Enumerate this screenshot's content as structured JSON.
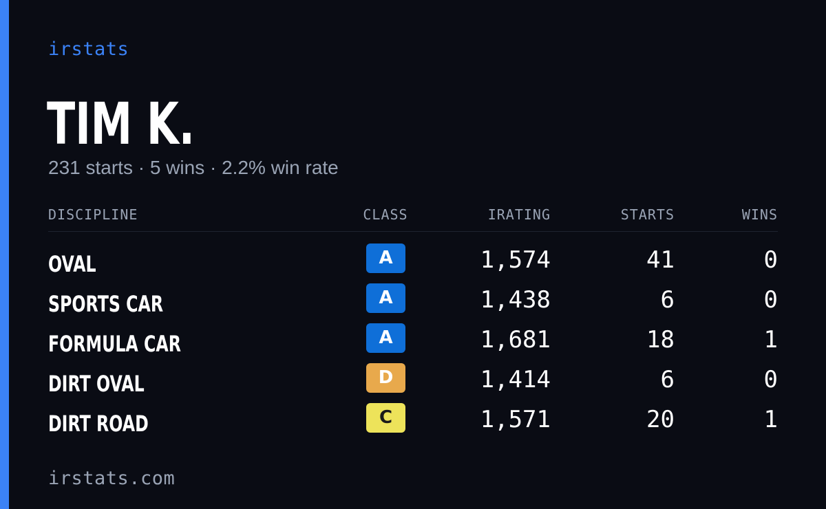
{
  "brand": "irstats",
  "driver": {
    "name": "TIM K.",
    "summary": {
      "starts": "231 starts",
      "wins": "5 wins",
      "win_rate": "2.2% win rate",
      "separator": "·"
    }
  },
  "table": {
    "headers": {
      "discipline": "DISCIPLINE",
      "class": "CLASS",
      "irating": "IRATING",
      "starts": "STARTS",
      "wins": "WINS"
    },
    "rows": [
      {
        "discipline": "OVAL",
        "class": "A",
        "class_color": "#0f6fd8",
        "class_text_color": "#ffffff",
        "irating": "1,574",
        "starts": "41",
        "wins": "0"
      },
      {
        "discipline": "SPORTS CAR",
        "class": "A",
        "class_color": "#0f6fd8",
        "class_text_color": "#ffffff",
        "irating": "1,438",
        "starts": "6",
        "wins": "0"
      },
      {
        "discipline": "FORMULA CAR",
        "class": "A",
        "class_color": "#0f6fd8",
        "class_text_color": "#ffffff",
        "irating": "1,681",
        "starts": "18",
        "wins": "1"
      },
      {
        "discipline": "DIRT OVAL",
        "class": "D",
        "class_color": "#e8a94c",
        "class_text_color": "#ffffff",
        "irating": "1,414",
        "starts": "6",
        "wins": "0"
      },
      {
        "discipline": "DIRT ROAD",
        "class": "C",
        "class_color": "#ede35a",
        "class_text_color": "#1a1a1a",
        "irating": "1,571",
        "starts": "20",
        "wins": "1"
      }
    ]
  },
  "footer": "irstats.com",
  "colors": {
    "background": "#0a0c14",
    "accent": "#3b82f6",
    "muted_text": "#9aa4b5",
    "primary_text": "#ffffff"
  }
}
